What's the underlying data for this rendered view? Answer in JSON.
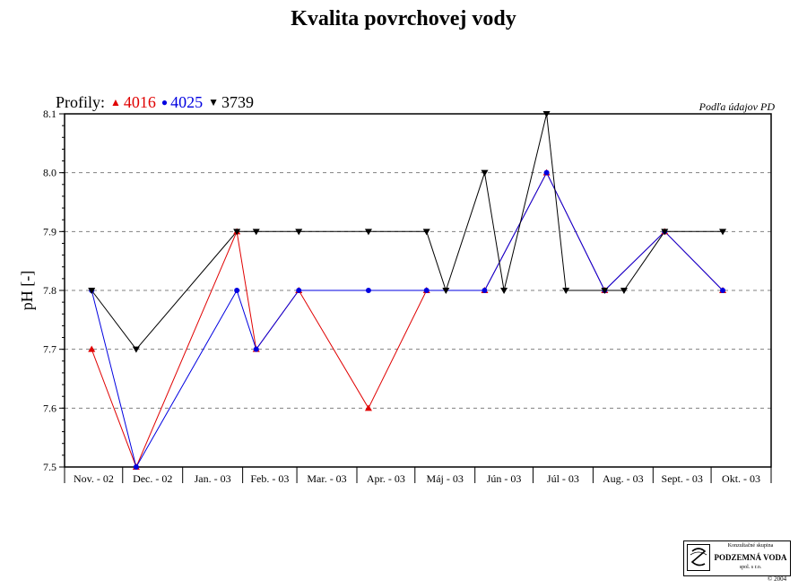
{
  "title": "Kvalita povrchovej vody",
  "legend": {
    "prefix": "Profily:",
    "items": [
      {
        "marker": "▲",
        "label": "4016",
        "color": "#e00000"
      },
      {
        "marker": "●",
        "label": "4025",
        "color": "#0000e0"
      },
      {
        "marker": "▼",
        "label": "3739",
        "color": "#000000"
      }
    ]
  },
  "source_note": "Podľa údajov PD",
  "logo": {
    "line1": "Konzultačné skupina",
    "line2": "PODZEMNÁ VODA",
    "line3": "spol. s r.o.",
    "copyright": "© 2004"
  },
  "chart_data": {
    "type": "line",
    "ylabel": "pH [-]",
    "ylim": [
      7.5,
      8.1
    ],
    "yticks": [
      "7.5",
      "7.6",
      "7.7",
      "7.8",
      "7.9",
      "8.0",
      "8.1"
    ],
    "categories": [
      "Nov. - 02",
      "Dec. - 02",
      "Jan. - 03",
      "Feb. - 03",
      "Mar. - 03",
      "Apr. - 03",
      "Máj - 03",
      "Jún - 03",
      "Júl - 03",
      "Aug. - 03",
      "Sept. - 03",
      "Okt. - 03"
    ],
    "grid": "horizontal dashed",
    "series": [
      {
        "name": "4016",
        "color": "#e00000",
        "marker": "triangle-up",
        "points": [
          {
            "x": "2002-11-15",
            "y": 7.7
          },
          {
            "x": "2002-12-08",
            "y": 7.5
          },
          {
            "x": "2003-01-29",
            "y": 7.9
          },
          {
            "x": "2003-02-08",
            "y": 7.7
          },
          {
            "x": "2003-03-02",
            "y": 7.8
          },
          {
            "x": "2003-04-07",
            "y": 7.6
          },
          {
            "x": "2003-05-07",
            "y": 7.8
          },
          {
            "x": "2003-06-06",
            "y": 7.8
          },
          {
            "x": "2003-07-08",
            "y": 8.0
          },
          {
            "x": "2003-08-07",
            "y": 7.8
          },
          {
            "x": "2003-09-07",
            "y": 7.9
          },
          {
            "x": "2003-10-07",
            "y": 7.8
          }
        ]
      },
      {
        "name": "4025",
        "color": "#0000e0",
        "marker": "circle",
        "points": [
          {
            "x": "2002-11-15",
            "y": 7.8
          },
          {
            "x": "2002-12-08",
            "y": 7.5
          },
          {
            "x": "2003-01-29",
            "y": 7.8
          },
          {
            "x": "2003-02-08",
            "y": 7.7
          },
          {
            "x": "2003-03-02",
            "y": 7.8
          },
          {
            "x": "2003-04-07",
            "y": 7.8
          },
          {
            "x": "2003-05-07",
            "y": 7.8
          },
          {
            "x": "2003-06-06",
            "y": 7.8
          },
          {
            "x": "2003-07-08",
            "y": 8.0
          },
          {
            "x": "2003-08-07",
            "y": 7.8
          },
          {
            "x": "2003-09-07",
            "y": 7.9
          },
          {
            "x": "2003-10-07",
            "y": 7.8
          }
        ]
      },
      {
        "name": "3739",
        "color": "#000000",
        "marker": "triangle-down",
        "points": [
          {
            "x": "2002-11-15",
            "y": 7.8
          },
          {
            "x": "2002-12-08",
            "y": 7.7
          },
          {
            "x": "2003-01-29",
            "y": 7.9
          },
          {
            "x": "2003-02-08",
            "y": 7.9
          },
          {
            "x": "2003-03-02",
            "y": 7.9
          },
          {
            "x": "2003-04-07",
            "y": 7.9
          },
          {
            "x": "2003-05-07",
            "y": 7.9
          },
          {
            "x": "2003-05-17",
            "y": 7.8
          },
          {
            "x": "2003-06-06",
            "y": 8.0
          },
          {
            "x": "2003-06-16",
            "y": 7.8
          },
          {
            "x": "2003-07-08",
            "y": 8.1
          },
          {
            "x": "2003-07-18",
            "y": 7.8
          },
          {
            "x": "2003-08-07",
            "y": 7.8
          },
          {
            "x": "2003-08-17",
            "y": 7.8
          },
          {
            "x": "2003-09-07",
            "y": 7.9
          },
          {
            "x": "2003-10-07",
            "y": 7.9
          }
        ]
      }
    ]
  }
}
